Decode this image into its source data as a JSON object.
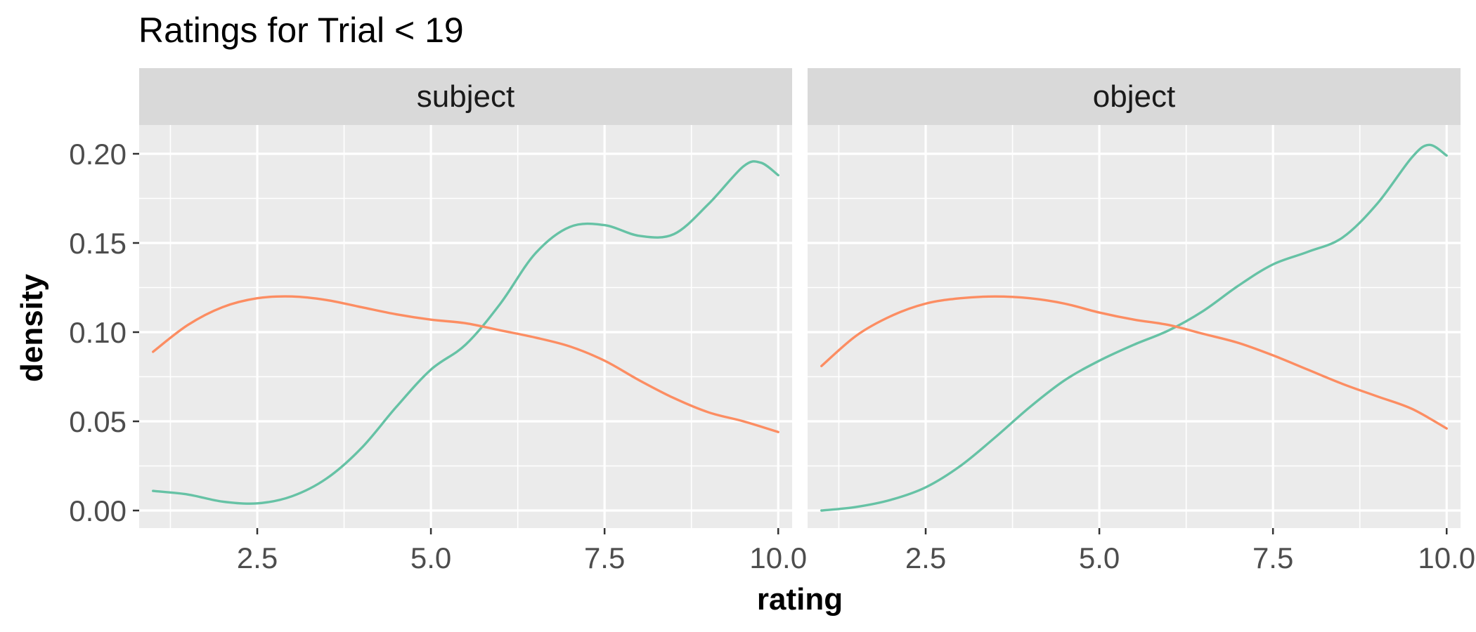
{
  "chart_data": {
    "type": "line",
    "title": "Ratings for Trial < 19",
    "xlabel": "rating",
    "ylabel": "density",
    "xlim": [
      0.8,
      10.2
    ],
    "ylim": [
      -0.01,
      0.2
    ],
    "x_ticks": [
      2.5,
      5.0,
      7.5,
      10.0
    ],
    "x_tick_labels": [
      "2.5",
      "5.0",
      "7.5",
      "10.0"
    ],
    "x_minor": [
      1.25,
      3.75,
      6.25,
      8.75
    ],
    "y_ticks": [
      0.0,
      0.05,
      0.1,
      0.15,
      0.2
    ],
    "y_tick_labels": [
      "0.00",
      "0.05",
      "0.10",
      "0.15",
      "0.20"
    ],
    "y_minor": [
      0.025,
      0.075,
      0.125,
      0.175
    ],
    "grid": true,
    "legend": "none",
    "colors": {
      "green": "#66c2a5",
      "orange": "#fc8d62"
    },
    "panels": [
      {
        "label": "subject",
        "series": [
          {
            "color": "#66c2a5",
            "x": [
              1.0,
              1.5,
              2.0,
              2.5,
              3.0,
              3.5,
              4.0,
              4.5,
              5.0,
              5.5,
              6.0,
              6.5,
              7.0,
              7.5,
              8.0,
              8.5,
              9.0,
              9.5,
              9.75,
              10.0
            ],
            "y": [
              0.011,
              0.009,
              0.005,
              0.004,
              0.008,
              0.018,
              0.035,
              0.058,
              0.079,
              0.093,
              0.116,
              0.144,
              0.159,
              0.16,
              0.154,
              0.155,
              0.172,
              0.193,
              0.195,
              0.188
            ]
          },
          {
            "color": "#fc8d62",
            "x": [
              1.0,
              1.5,
              2.0,
              2.5,
              3.0,
              3.5,
              4.0,
              4.5,
              5.0,
              5.5,
              6.0,
              6.5,
              7.0,
              7.5,
              8.0,
              8.5,
              9.0,
              9.5,
              10.0
            ],
            "y": [
              0.089,
              0.104,
              0.114,
              0.119,
              0.12,
              0.118,
              0.114,
              0.11,
              0.107,
              0.105,
              0.101,
              0.097,
              0.092,
              0.084,
              0.073,
              0.063,
              0.055,
              0.05,
              0.044
            ]
          }
        ]
      },
      {
        "label": "object",
        "series": [
          {
            "color": "#66c2a5",
            "x": [
              1.0,
              1.5,
              2.0,
              2.5,
              3.0,
              3.5,
              4.0,
              4.5,
              5.0,
              5.5,
              6.0,
              6.5,
              7.0,
              7.5,
              8.0,
              8.5,
              9.0,
              9.5,
              9.75,
              10.0
            ],
            "y": [
              0.0,
              0.002,
              0.006,
              0.013,
              0.025,
              0.041,
              0.058,
              0.073,
              0.084,
              0.093,
              0.101,
              0.112,
              0.126,
              0.138,
              0.145,
              0.153,
              0.172,
              0.198,
              0.205,
              0.199
            ]
          },
          {
            "color": "#fc8d62",
            "x": [
              1.0,
              1.5,
              2.0,
              2.5,
              3.0,
              3.5,
              4.0,
              4.5,
              5.0,
              5.5,
              6.0,
              6.5,
              7.0,
              7.5,
              8.0,
              8.5,
              9.0,
              9.5,
              10.0
            ],
            "y": [
              0.081,
              0.098,
              0.109,
              0.116,
              0.119,
              0.12,
              0.119,
              0.116,
              0.111,
              0.107,
              0.104,
              0.099,
              0.094,
              0.087,
              0.079,
              0.071,
              0.064,
              0.057,
              0.046
            ]
          }
        ]
      }
    ]
  }
}
